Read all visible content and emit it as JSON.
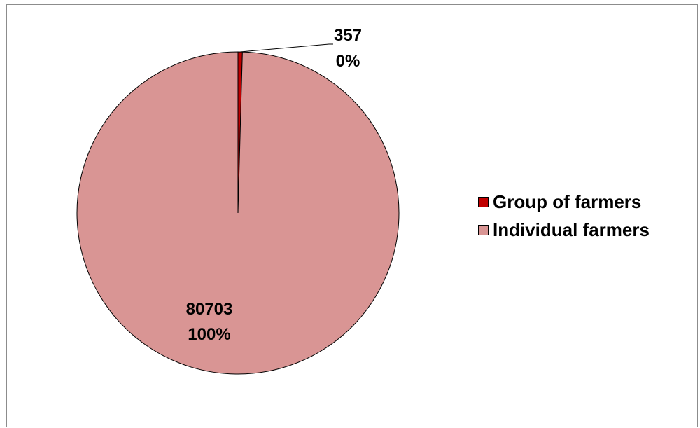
{
  "chart_data": {
    "type": "pie",
    "categories": [
      "Group of farmers",
      "Individual farmers"
    ],
    "values": [
      357,
      80703
    ],
    "percent_labels": [
      "0%",
      "100%"
    ],
    "colors": [
      "#c00000",
      "#d99594"
    ],
    "legend_position": "right",
    "title": ""
  }
}
